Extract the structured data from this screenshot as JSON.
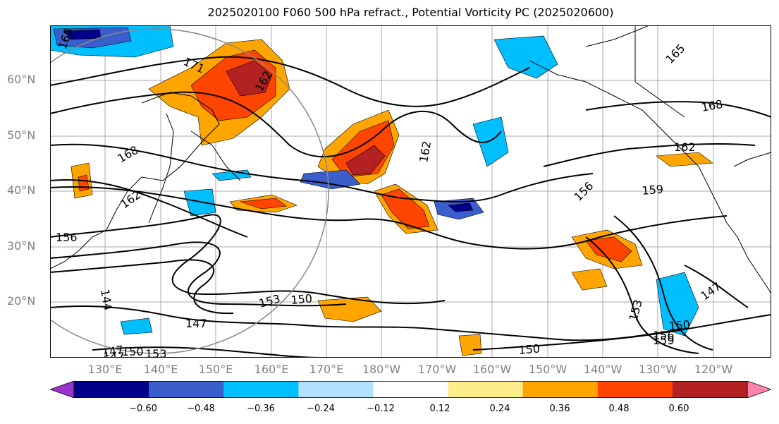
{
  "title": "2025020100 F060 500 hPa refract., Potential Vorticity PC (2025020600)",
  "lat_labels": [
    "60°N",
    "50°N",
    "40°N",
    "30°N",
    "20°N"
  ],
  "lon_labels": [
    "130°E",
    "140°E",
    "150°E",
    "160°E",
    "170°E",
    "180°W",
    "170°W",
    "160°W",
    "150°W",
    "140°W",
    "130°W",
    "120°W"
  ],
  "colorbar": {
    "ticks": [
      "−0.60",
      "−0.48",
      "−0.36",
      "−0.24",
      "−0.12",
      "0.12",
      "0.24",
      "0.36",
      "0.48",
      "0.60"
    ],
    "colors": [
      "#9a32cd",
      "#00008b",
      "#3a5fcd",
      "#00bfff",
      "#b0e2ff",
      "#ffffff",
      "#ffec8b",
      "#ffa500",
      "#ff4500",
      "#b22222",
      "#ff82ab"
    ]
  },
  "contour_labels": [
    "168",
    "171",
    "165",
    "168",
    "162",
    "162",
    "168",
    "162",
    "156",
    "159",
    "156",
    "144",
    "153",
    "150",
    "147",
    "147",
    "150",
    "153",
    "150",
    "159",
    "150",
    "147",
    "153",
    "156",
    "162",
    "147"
  ]
}
